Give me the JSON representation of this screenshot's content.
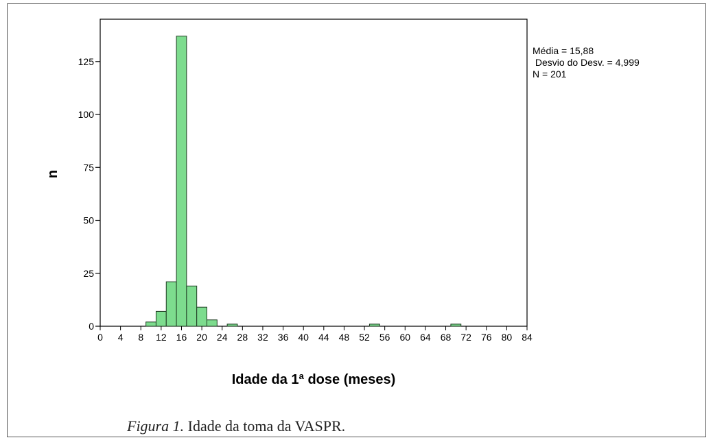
{
  "chart_data": {
    "type": "bar",
    "subtype": "histogram",
    "xlabel": "Idade da 1ª dose (meses)",
    "ylabel": "n",
    "xlim": [
      0,
      84
    ],
    "ylim": [
      0,
      145
    ],
    "x_ticks": [
      "0",
      "4",
      "8",
      "12",
      "16",
      "20",
      "24",
      "28",
      "32",
      "36",
      "40",
      "44",
      "48",
      "52",
      "56",
      "60",
      "64",
      "68",
      "72",
      "76",
      "80",
      "84"
    ],
    "y_ticks": [
      "0",
      "25",
      "50",
      "75",
      "100",
      "125"
    ],
    "bins": [
      {
        "x0": 9,
        "x1": 11,
        "count": 2
      },
      {
        "x0": 11,
        "x1": 13,
        "count": 7
      },
      {
        "x0": 13,
        "x1": 15,
        "count": 21
      },
      {
        "x0": 15,
        "x1": 17,
        "count": 137
      },
      {
        "x0": 17,
        "x1": 19,
        "count": 19
      },
      {
        "x0": 19,
        "x1": 21,
        "count": 9
      },
      {
        "x0": 21,
        "x1": 23,
        "count": 3
      },
      {
        "x0": 25,
        "x1": 27,
        "count": 1
      },
      {
        "x0": 53,
        "x1": 55,
        "count": 1
      },
      {
        "x0": 69,
        "x1": 71,
        "count": 1
      }
    ],
    "bar_color": "#7ddc8e",
    "bar_edge_color": "#1f3a22",
    "grid": false,
    "stats": [
      "Média = 15,88",
      " Desvio do Desv. = 4,999",
      "N = 201"
    ]
  },
  "caption": {
    "figure_label": "Figura 1.",
    "text": " Idade da toma da VASPR."
  }
}
